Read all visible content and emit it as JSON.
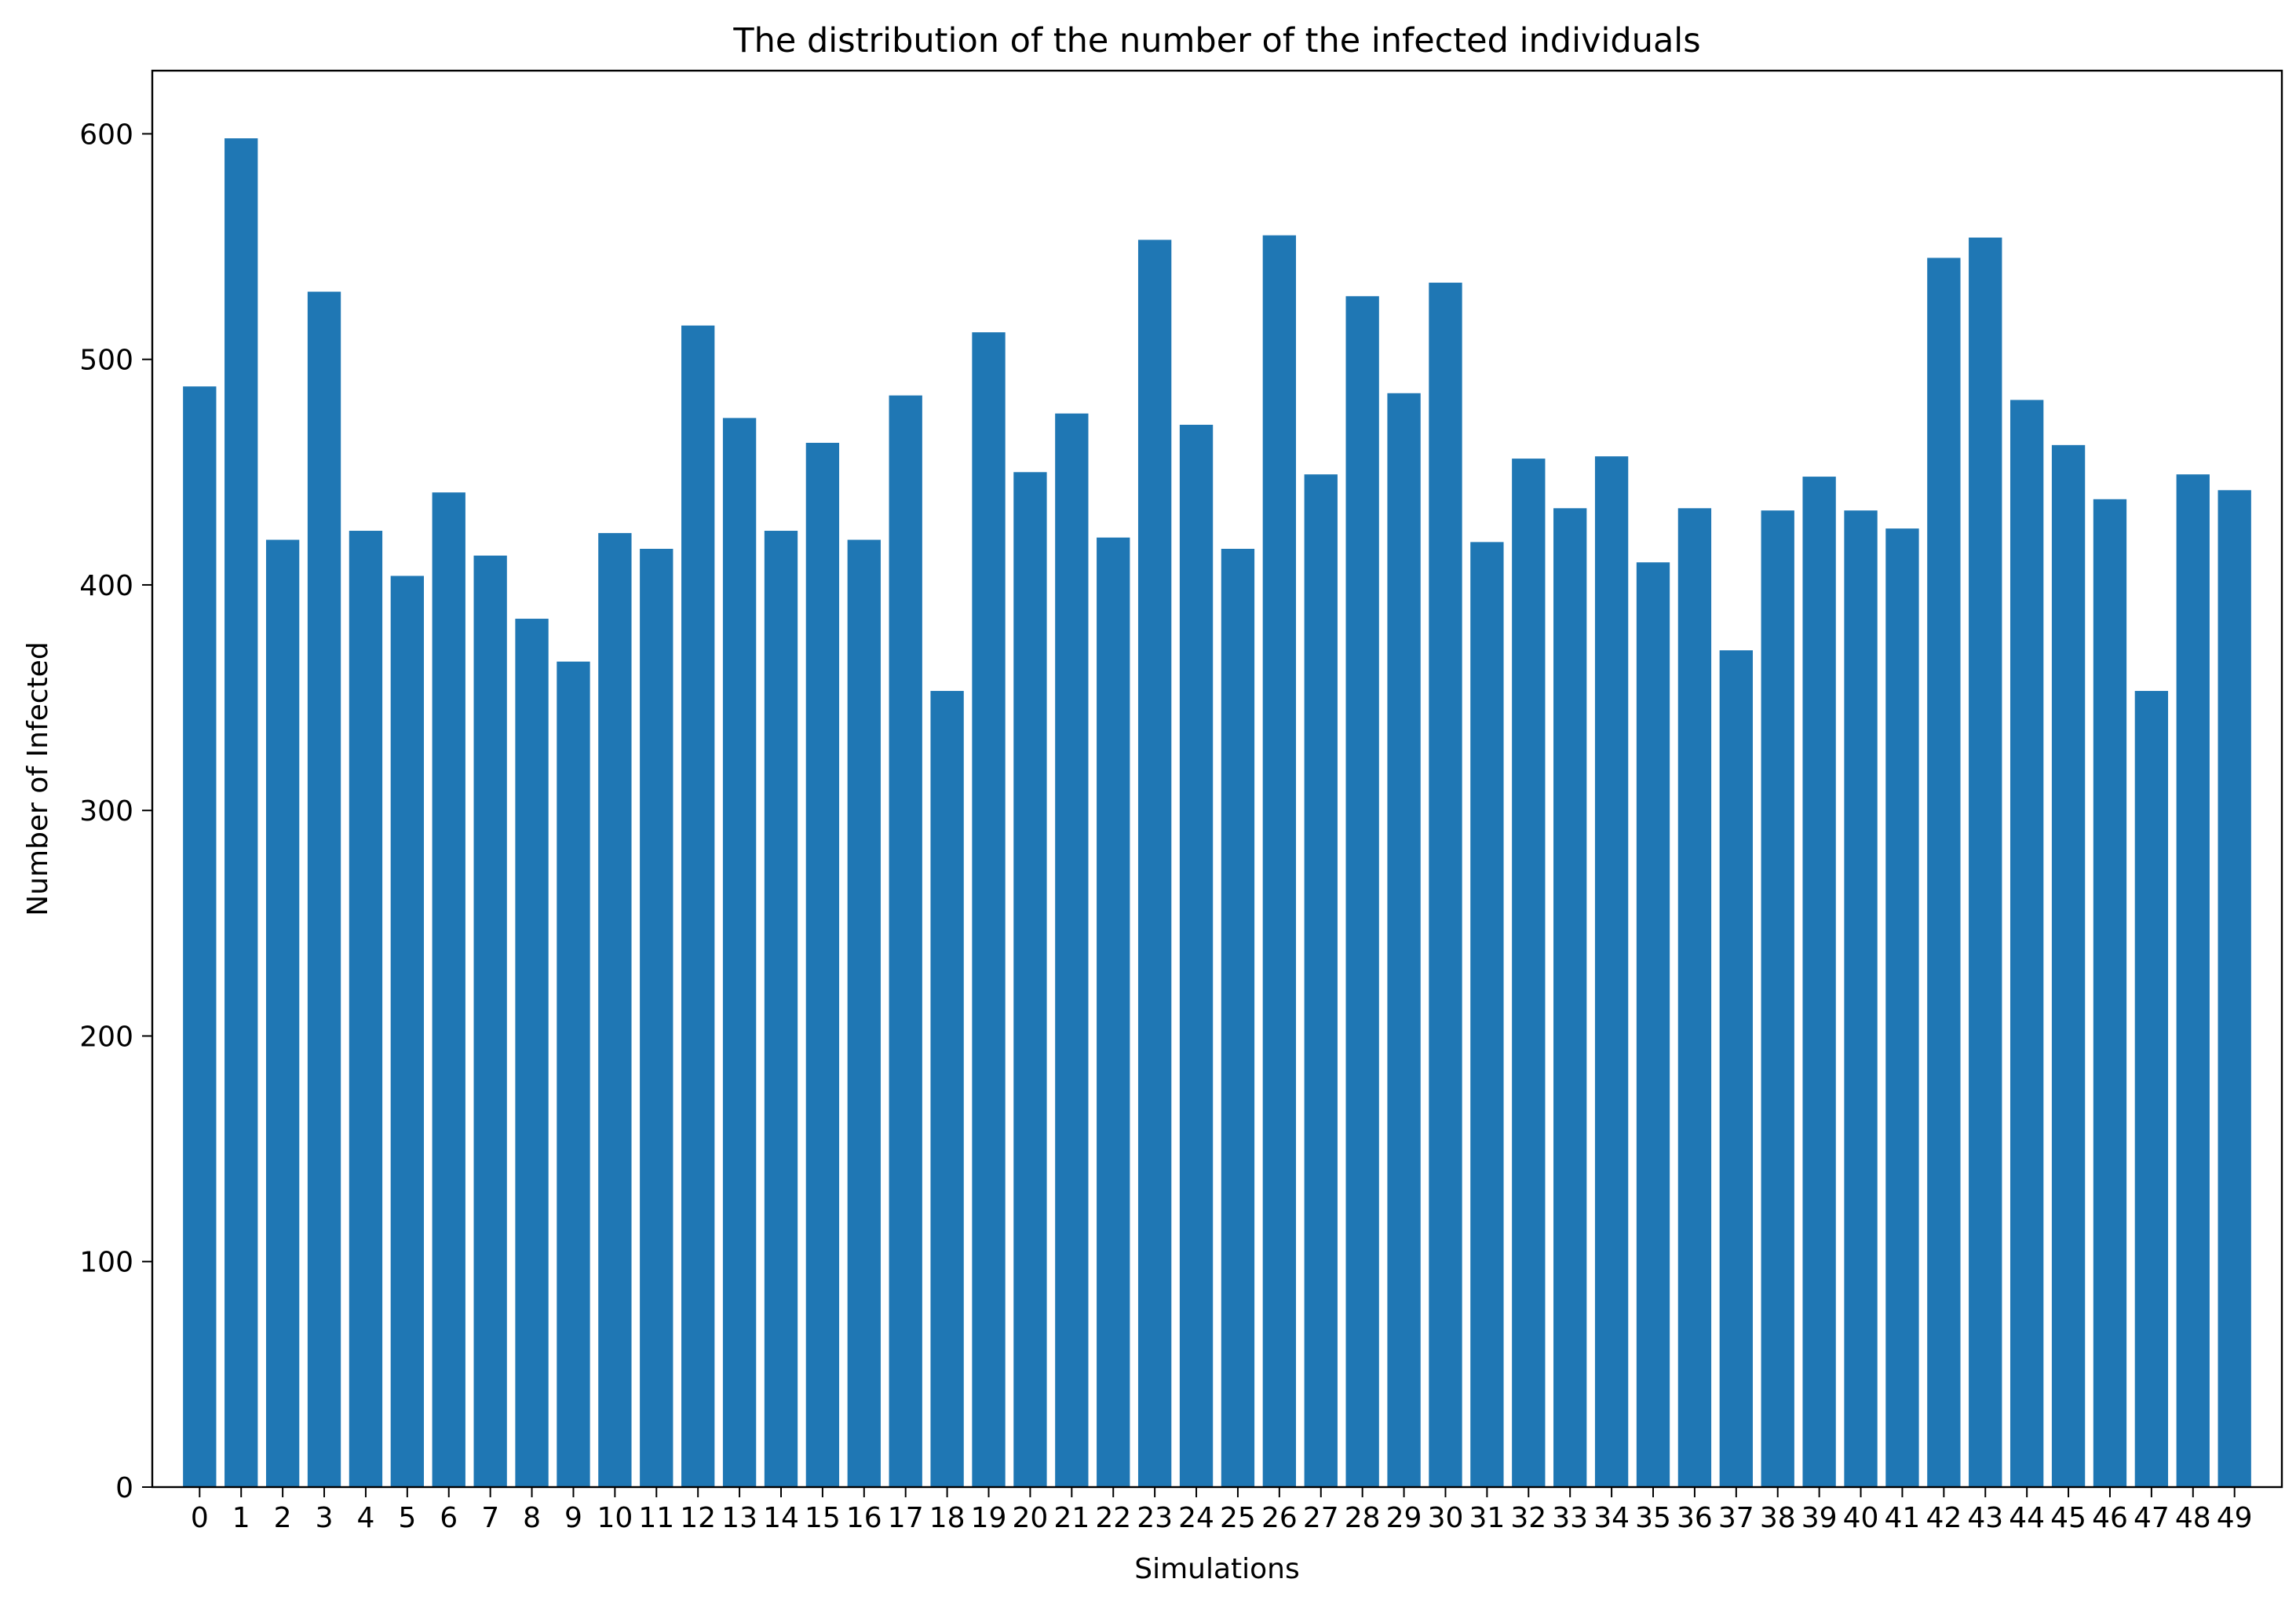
{
  "chart_data": {
    "type": "bar",
    "title": "The distribution of the number of the infected individuals",
    "xlabel": "Simulations",
    "ylabel": "Number of Infected",
    "categories": [
      "0",
      "1",
      "2",
      "3",
      "4",
      "5",
      "6",
      "7",
      "8",
      "9",
      "10",
      "11",
      "12",
      "13",
      "14",
      "15",
      "16",
      "17",
      "18",
      "19",
      "20",
      "21",
      "22",
      "23",
      "24",
      "25",
      "26",
      "27",
      "28",
      "29",
      "30",
      "31",
      "32",
      "33",
      "34",
      "35",
      "36",
      "37",
      "38",
      "39",
      "40",
      "41",
      "42",
      "43",
      "44",
      "45",
      "46",
      "47",
      "48",
      "49"
    ],
    "values": [
      488,
      598,
      420,
      530,
      424,
      404,
      441,
      413,
      385,
      366,
      423,
      416,
      515,
      474,
      424,
      463,
      420,
      484,
      353,
      512,
      450,
      476,
      421,
      553,
      471,
      416,
      555,
      449,
      528,
      485,
      534,
      419,
      456,
      434,
      457,
      410,
      434,
      371,
      433,
      448,
      433,
      425,
      545,
      554,
      482,
      462,
      438,
      353,
      449,
      442
    ],
    "yticks": [
      0,
      100,
      200,
      300,
      400,
      500,
      600
    ],
    "ylim": [
      0,
      628
    ],
    "grid": false,
    "bar_color": "#1f77b4"
  }
}
